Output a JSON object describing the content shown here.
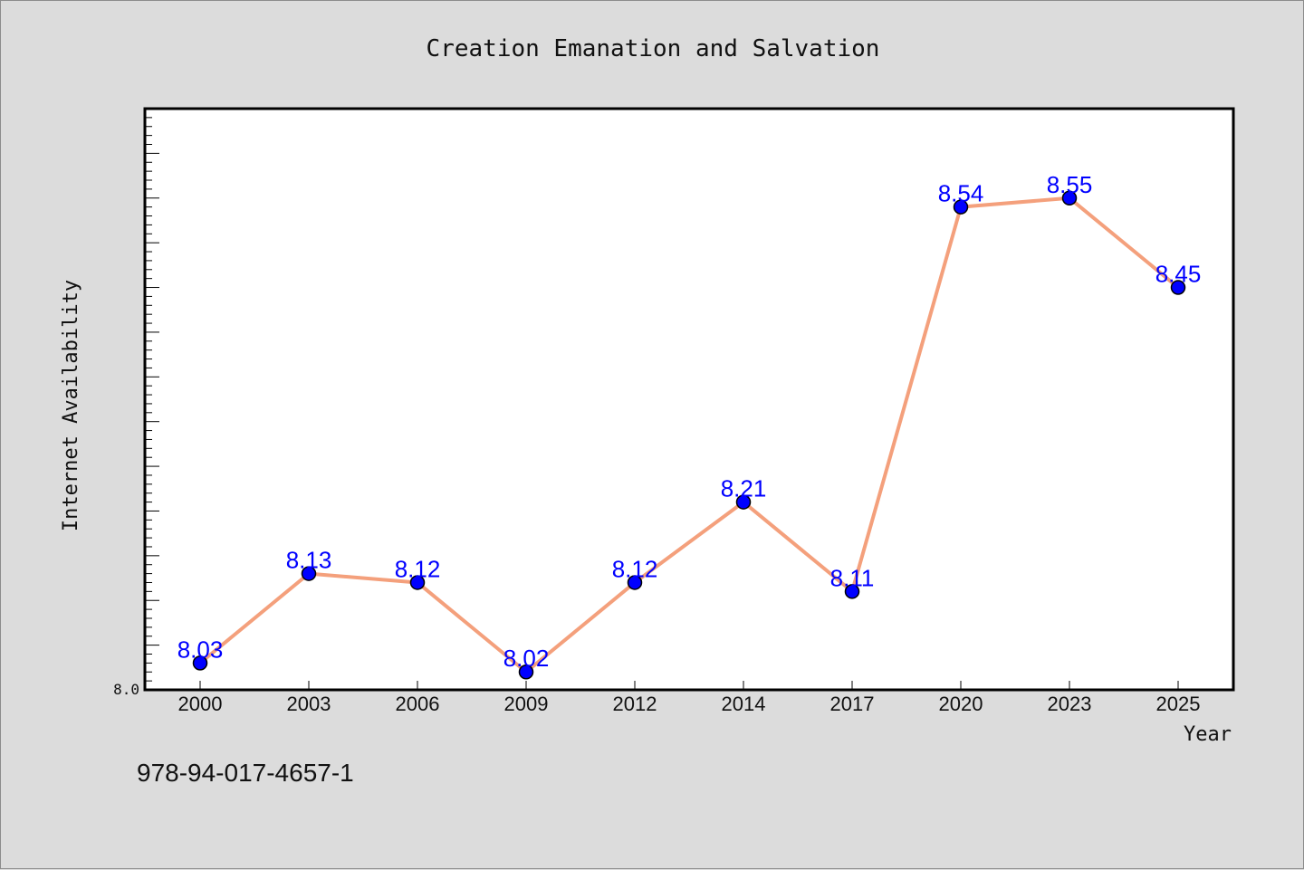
{
  "chart_data": {
    "type": "line",
    "title": "Creation Emanation and Salvation",
    "xlabel": "Year",
    "ylabel": "Internet Availability",
    "categories": [
      "2000",
      "2003",
      "2006",
      "2009",
      "2012",
      "2014",
      "2017",
      "2020",
      "2023",
      "2025"
    ],
    "series": [
      {
        "values": [
          8.03,
          8.13,
          8.12,
          8.02,
          8.12,
          8.21,
          8.11,
          8.54,
          8.55,
          8.45
        ],
        "data_labels": [
          "8.03",
          "8.13",
          "8.12",
          "8.02",
          "8.12",
          "8.21",
          "8.11",
          "8.54",
          "8.55",
          "8.45"
        ],
        "line_color": "#f4a07c",
        "marker_color": "#0000ff"
      }
    ],
    "ylim": [
      8.0,
      8.65
    ],
    "y_tick_labels": [
      "8.0"
    ],
    "grid": false,
    "label_color": "#0000ff"
  },
  "footer": {
    "isbn": "978-94-017-4657-1"
  }
}
